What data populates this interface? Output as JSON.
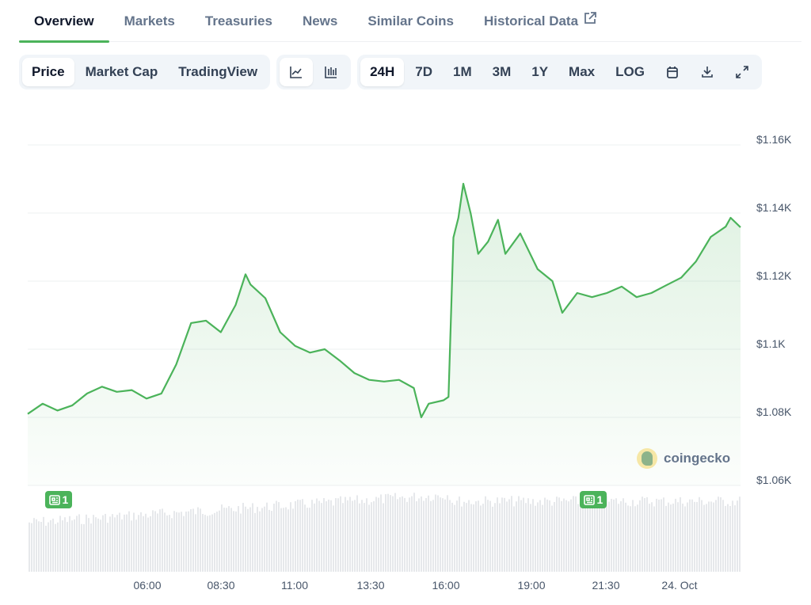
{
  "tabs": [
    {
      "label": "Overview",
      "active": true
    },
    {
      "label": "Markets"
    },
    {
      "label": "Treasuries"
    },
    {
      "label": "News"
    },
    {
      "label": "Similar Coins"
    },
    {
      "label": "Historical Data",
      "icon": "external-link-icon"
    }
  ],
  "toolbar": {
    "views": [
      "Price",
      "Market Cap",
      "TradingView"
    ],
    "selected_view": "Price",
    "chart_types": [
      "line-chart-icon",
      "candlestick-icon"
    ],
    "selected_chart_type": "line-chart-icon",
    "ranges": [
      "24H",
      "7D",
      "1M",
      "3M",
      "1Y",
      "Max",
      "LOG"
    ],
    "selected_range": "24H",
    "icons": [
      "calendar-icon",
      "download-icon",
      "expand-icon"
    ]
  },
  "watermark": "coingecko",
  "news_markers": [
    {
      "time": "03:00",
      "count": "1"
    },
    {
      "time": "21:00",
      "count": "1"
    }
  ],
  "colors": {
    "line": "#4bb35a",
    "news": "#4bb35a",
    "volume": "#e6e8eb"
  },
  "chart_data": {
    "type": "area",
    "xlabel": "",
    "ylabel": "",
    "x_ticks": [
      "06:00",
      "08:30",
      "11:00",
      "13:30",
      "16:00",
      "19:00",
      "21:30",
      "24. Oct"
    ],
    "y_ticks": [
      "$1.16K",
      "$1.14K",
      "$1.12K",
      "$1.1K",
      "$1.08K",
      "$1.06K"
    ],
    "ylim": [
      1060,
      1160
    ],
    "x_range": [
      "02:00",
      "02:00 (24. Oct)"
    ],
    "grid": true,
    "series": [
      {
        "points": [
          [
            "02:00",
            1081
          ],
          [
            "02:30",
            1084
          ],
          [
            "03:00",
            1082
          ],
          [
            "03:30",
            1083.5
          ],
          [
            "04:00",
            1087
          ],
          [
            "04:30",
            1089
          ],
          [
            "05:00",
            1087.5
          ],
          [
            "05:30",
            1088
          ],
          [
            "06:00",
            1085.5
          ],
          [
            "06:30",
            1087
          ],
          [
            "07:00",
            1095.5
          ],
          [
            "07:30",
            1107.7
          ],
          [
            "08:00",
            1108.4
          ],
          [
            "08:30",
            1105
          ],
          [
            "09:00",
            1113
          ],
          [
            "09:20",
            1122
          ],
          [
            "09:30",
            1119
          ],
          [
            "10:00",
            1115
          ],
          [
            "10:30",
            1105
          ],
          [
            "11:00",
            1101
          ],
          [
            "11:30",
            1099
          ],
          [
            "12:00",
            1100
          ],
          [
            "12:30",
            1096.7
          ],
          [
            "13:00",
            1093
          ],
          [
            "13:30",
            1091
          ],
          [
            "14:00",
            1090.5
          ],
          [
            "14:30",
            1091
          ],
          [
            "15:00",
            1088.6
          ],
          [
            "15:15",
            1080
          ],
          [
            "15:30",
            1084
          ],
          [
            "16:00",
            1085
          ],
          [
            "16:10",
            1086
          ],
          [
            "16:20",
            1132.8
          ],
          [
            "16:30",
            1138.6
          ],
          [
            "16:40",
            1148.6
          ],
          [
            "16:55",
            1139.8
          ],
          [
            "17:10",
            1128
          ],
          [
            "17:30",
            1131.6
          ],
          [
            "17:50",
            1138
          ],
          [
            "18:05",
            1128
          ],
          [
            "18:35",
            1134
          ],
          [
            "19:10",
            1123.5
          ],
          [
            "19:40",
            1120
          ],
          [
            "20:00",
            1110.7
          ],
          [
            "20:30",
            1116.5
          ],
          [
            "21:00",
            1115.3
          ],
          [
            "21:30",
            1116.5
          ],
          [
            "22:00",
            1118.4
          ],
          [
            "22:30",
            1115.3
          ],
          [
            "23:00",
            1116.5
          ],
          [
            "23:30",
            1118.8
          ],
          [
            "00:00",
            1121
          ],
          [
            "00:30",
            1125.8
          ],
          [
            "01:00",
            1133
          ],
          [
            "01:30",
            1136
          ],
          [
            "01:40",
            1138.6
          ],
          [
            "02:00",
            1135.8
          ]
        ]
      }
    ]
  }
}
